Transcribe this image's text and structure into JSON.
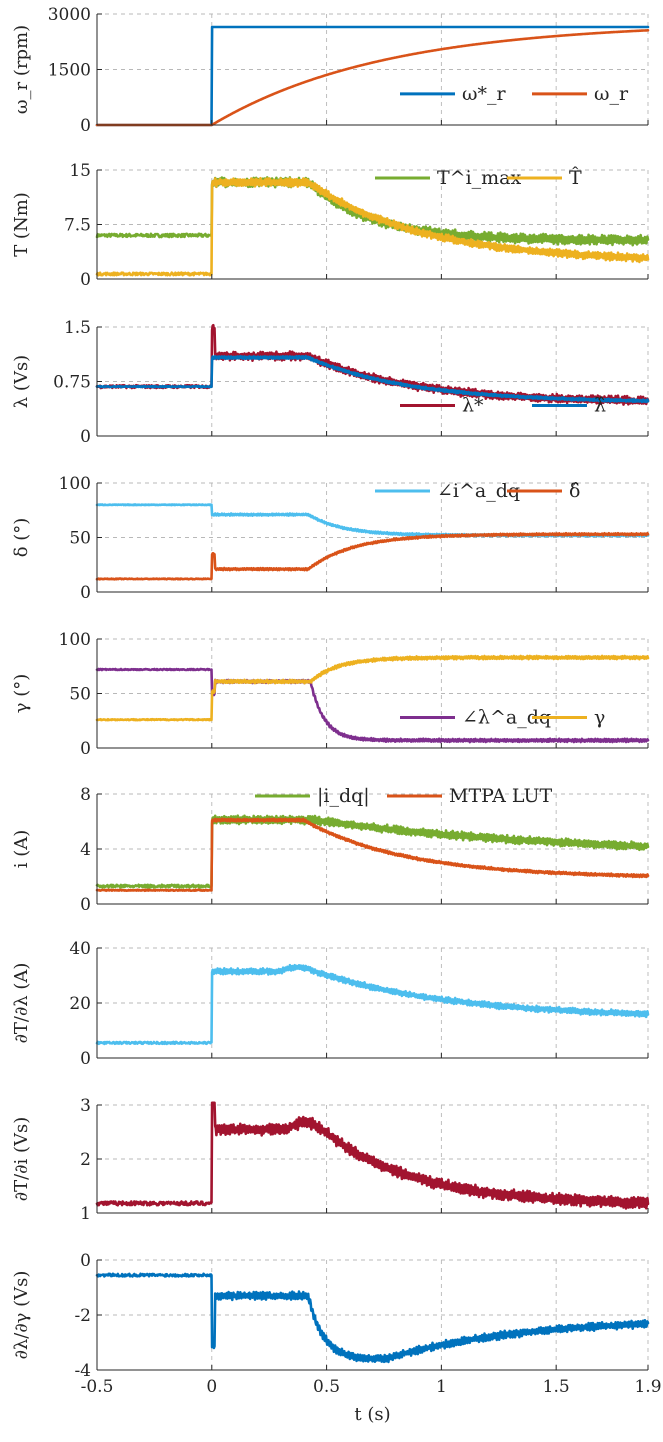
{
  "chart_data": [
    {
      "type": "line",
      "ylabel": "ω_r (rpm)",
      "ylim": [
        0,
        3000
      ],
      "yticks": [
        "0",
        "1500",
        "3000"
      ],
      "xlim": [
        -0.5,
        1.9
      ],
      "grid": true,
      "legend": "right",
      "series": [
        {
          "name": "ω*_r",
          "color": "#0072BD",
          "kind": "ref_step",
          "params": {
            "before": 0,
            "after": 2650
          }
        },
        {
          "name": "ω_r",
          "color": "#D95319",
          "kind": "exp_rise",
          "params": {
            "before": 0,
            "final": 2780,
            "tau": 0.75
          }
        }
      ]
    },
    {
      "type": "line",
      "ylabel": "T (Nm)",
      "ylim": [
        0,
        15
      ],
      "yticks": [
        "0",
        "7.5",
        "15"
      ],
      "xlim": [
        -0.5,
        1.9
      ],
      "grid": true,
      "legend": "top-right",
      "series": [
        {
          "name": "T^i_max",
          "color": "#77AC30",
          "kind": "plateau_decay",
          "params": {
            "before": 6.0,
            "plateau": 13.3,
            "t1": 0.42,
            "final": 5.3,
            "tau": 0.28,
            "noise": 0.55
          }
        },
        {
          "name": "T̂",
          "color": "#EDB120",
          "kind": "plateau_decay",
          "params": {
            "before": 0.7,
            "plateau": 13.3,
            "t1": 0.42,
            "final": 2.3,
            "tau": 0.5,
            "noise": 0.45
          }
        }
      ]
    },
    {
      "type": "line",
      "ylabel": "λ (Vs)",
      "ylim": [
        0,
        1.5
      ],
      "yticks": [
        "0",
        "0.75",
        "1.5"
      ],
      "xlim": [
        -0.5,
        1.9
      ],
      "grid": true,
      "legend": "right",
      "series": [
        {
          "name": "λ*",
          "color": "#A2142F",
          "kind": "plateau_decay",
          "params": {
            "before": 0.68,
            "plateau": 1.1,
            "t1": 0.42,
            "final": 0.46,
            "tau": 0.45,
            "noise": 0.05,
            "spike": 1.5
          }
        },
        {
          "name": "λ̂",
          "color": "#0072BD",
          "kind": "plateau_decay",
          "params": {
            "before": 0.68,
            "plateau": 1.08,
            "t1": 0.42,
            "final": 0.46,
            "tau": 0.45,
            "noise": 0.015
          }
        }
      ]
    },
    {
      "type": "line",
      "ylabel": "δ (°)",
      "ylim": [
        0,
        100
      ],
      "yticks": [
        "0",
        "50",
        "100"
      ],
      "xlim": [
        -0.5,
        1.9
      ],
      "grid": true,
      "legend": "top-right",
      "series": [
        {
          "name": "∠i^a_dq",
          "color": "#4DBEEE",
          "kind": "plateau_decay",
          "params": {
            "before": 80,
            "plateau": 71,
            "t1": 0.42,
            "final": 52,
            "tau": 0.15,
            "noise": 0.8
          }
        },
        {
          "name": "δ̂",
          "color": "#D95319",
          "kind": "plateau_decay",
          "params": {
            "before": 12,
            "plateau": 21,
            "t1": 0.42,
            "final": 53,
            "tau": 0.2,
            "noise": 0.8,
            "spike": 35
          }
        }
      ]
    },
    {
      "type": "line",
      "ylabel": "γ (°)",
      "ylim": [
        0,
        100
      ],
      "yticks": [
        "0",
        "50",
        "100"
      ],
      "xlim": [
        -0.5,
        1.9
      ],
      "grid": true,
      "legend": "right",
      "series": [
        {
          "name": "∠λ^a_dq",
          "color": "#7E2F8E",
          "kind": "plateau_decay",
          "params": {
            "before": 72,
            "plateau": 61,
            "t1": 0.43,
            "final": 7,
            "tau": 0.06,
            "noise": 1.2,
            "spike": 50
          }
        },
        {
          "name": "γ",
          "color": "#EDB120",
          "kind": "plateau_decay",
          "params": {
            "before": 26,
            "plateau": 61,
            "t1": 0.43,
            "final": 83,
            "tau": 0.12,
            "noise": 1.2,
            "spike": 52
          }
        }
      ]
    },
    {
      "type": "line",
      "ylabel": "i (A)",
      "ylim": [
        0,
        8
      ],
      "yticks": [
        "0",
        "4",
        "8"
      ],
      "xlim": [
        -0.5,
        1.9
      ],
      "grid": true,
      "legend": "top",
      "series": [
        {
          "name": "|i_dq|",
          "color": "#77AC30",
          "kind": "plateau_decay",
          "params": {
            "before": 1.3,
            "plateau": 6.1,
            "t1": 0.45,
            "final": 3.5,
            "tau": 1.1,
            "noise": 0.25
          }
        },
        {
          "name": "MTPA LUT",
          "color": "#D95319",
          "kind": "plateau_decay",
          "params": {
            "before": 1.0,
            "plateau": 6.1,
            "t1": 0.4,
            "final": 1.9,
            "tau": 0.45,
            "noise": 0.08
          }
        }
      ]
    },
    {
      "type": "line",
      "ylabel": "∂T/∂λ (A)",
      "ylim": [
        0,
        40
      ],
      "yticks": [
        "0",
        "20",
        "40"
      ],
      "xlim": [
        -0.5,
        1.9
      ],
      "grid": true,
      "series": [
        {
          "name": "",
          "color": "#4DBEEE",
          "kind": "plateau_decay",
          "params": {
            "before": 5.5,
            "plateau": 31.5,
            "t1": 0.45,
            "final": 14.5,
            "tau": 0.6,
            "noise": 0.9,
            "bump": 33
          }
        }
      ]
    },
    {
      "type": "line",
      "ylabel": "∂T/∂i (Vs)",
      "ylim": [
        1,
        3
      ],
      "yticks": [
        "1",
        "2",
        "3"
      ],
      "xlim": [
        -0.5,
        1.9
      ],
      "grid": true,
      "series": [
        {
          "name": "",
          "color": "#A2142F",
          "kind": "plateau_decay",
          "params": {
            "before": 1.18,
            "plateau": 2.55,
            "t1": 0.48,
            "final": 1.15,
            "tau": 0.4,
            "noise": 0.09,
            "spike": 3.2,
            "bump": 2.68
          }
        }
      ]
    },
    {
      "type": "line",
      "ylabel": "∂λ/∂γ (Vs)",
      "ylim": [
        -4,
        0
      ],
      "yticks": [
        "-4",
        "-2",
        "0"
      ],
      "xlabel": "t (s)",
      "xticks": [
        "-0.5",
        "0",
        "0.5",
        "1",
        "1.5",
        "1.9"
      ],
      "xlim": [
        -0.5,
        1.9
      ],
      "grid": true,
      "series": [
        {
          "name": "",
          "color": "#0072BD",
          "kind": "dip_recover",
          "params": {
            "before": -0.55,
            "plateau": -1.3,
            "t1": 0.42,
            "min": -3.6,
            "tmin": 0.75,
            "final": -2.1,
            "noise": 0.12,
            "spike": -3.1
          }
        }
      ]
    }
  ]
}
